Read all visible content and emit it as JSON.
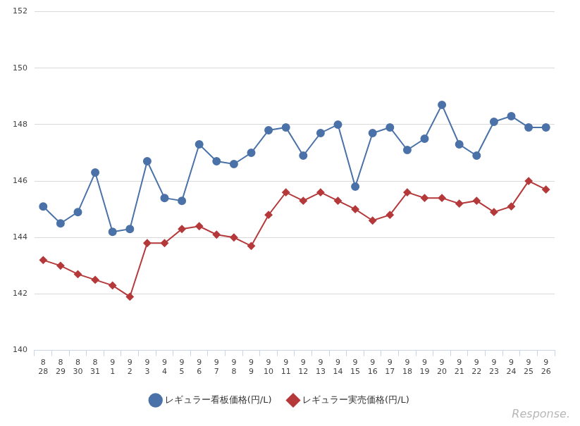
{
  "chart_data": {
    "type": "line",
    "categories": [
      "8\n28",
      "8\n29",
      "8\n30",
      "8\n31",
      "9\n1",
      "9\n2",
      "9\n3",
      "9\n4",
      "9\n5",
      "9\n6",
      "9\n7",
      "9\n8",
      "9\n9",
      "9\n10",
      "9\n11",
      "9\n12",
      "9\n13",
      "9\n14",
      "9\n15",
      "9\n16",
      "9\n17",
      "9\n18",
      "9\n19",
      "9\n20",
      "9\n21",
      "9\n22",
      "9\n23",
      "9\n24",
      "9\n25",
      "9\n26"
    ],
    "series": [
      {
        "name": "レギュラー看板価格(円/L)",
        "color": "#4a72a8",
        "marker": "circle",
        "values": [
          145.1,
          144.5,
          144.9,
          146.3,
          144.2,
          144.3,
          146.7,
          145.4,
          145.3,
          147.3,
          146.7,
          146.6,
          147.0,
          147.8,
          147.9,
          146.9,
          147.7,
          148.0,
          145.8,
          147.7,
          147.9,
          147.1,
          147.5,
          148.7,
          147.3,
          146.9,
          148.1,
          148.3,
          147.9,
          147.9
        ]
      },
      {
        "name": "レギュラー実売価格(円/L)",
        "color": "#b5393a",
        "marker": "diamond",
        "values": [
          143.2,
          143.0,
          142.7,
          142.5,
          142.3,
          141.9,
          143.8,
          143.8,
          144.3,
          144.4,
          144.1,
          144.0,
          143.7,
          144.8,
          145.6,
          145.3,
          145.6,
          145.3,
          145.0,
          144.6,
          144.8,
          145.6,
          145.4,
          145.4,
          145.2,
          145.3,
          144.9,
          145.1,
          146.0,
          145.7
        ]
      }
    ],
    "ylim": [
      140,
      152
    ],
    "yticks": [
      140,
      142,
      144,
      146,
      148,
      150,
      152
    ],
    "grid": true,
    "legend": "bottom",
    "annotation": "Response."
  }
}
